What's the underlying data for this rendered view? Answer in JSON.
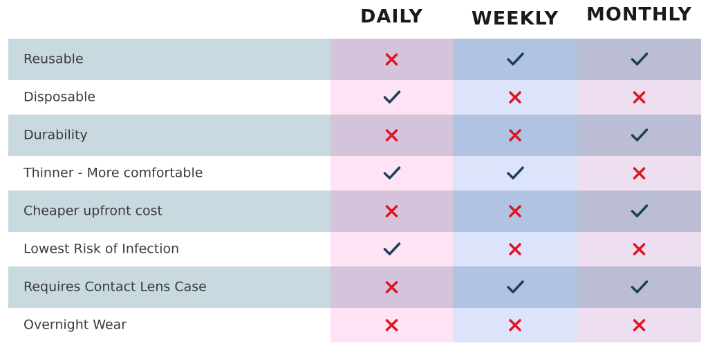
{
  "table": {
    "columns": [
      "DAILY",
      "WEEKLY",
      "MONTHLY"
    ],
    "rows": [
      {
        "label": "Reusable",
        "marks": [
          false,
          true,
          true
        ]
      },
      {
        "label": "Disposable",
        "marks": [
          true,
          false,
          false
        ]
      },
      {
        "label": "Durability",
        "marks": [
          false,
          false,
          true
        ]
      },
      {
        "label": "Thinner - More comfortable",
        "marks": [
          true,
          true,
          false
        ]
      },
      {
        "label": "Cheaper upfront cost",
        "marks": [
          false,
          false,
          true
        ]
      },
      {
        "label": "Lowest Risk of Infection",
        "marks": [
          true,
          false,
          false
        ]
      },
      {
        "label": "Requires Contact Lens Case",
        "marks": [
          false,
          true,
          true
        ]
      },
      {
        "label": "Overnight Wear",
        "marks": [
          false,
          false,
          false
        ]
      }
    ]
  }
}
